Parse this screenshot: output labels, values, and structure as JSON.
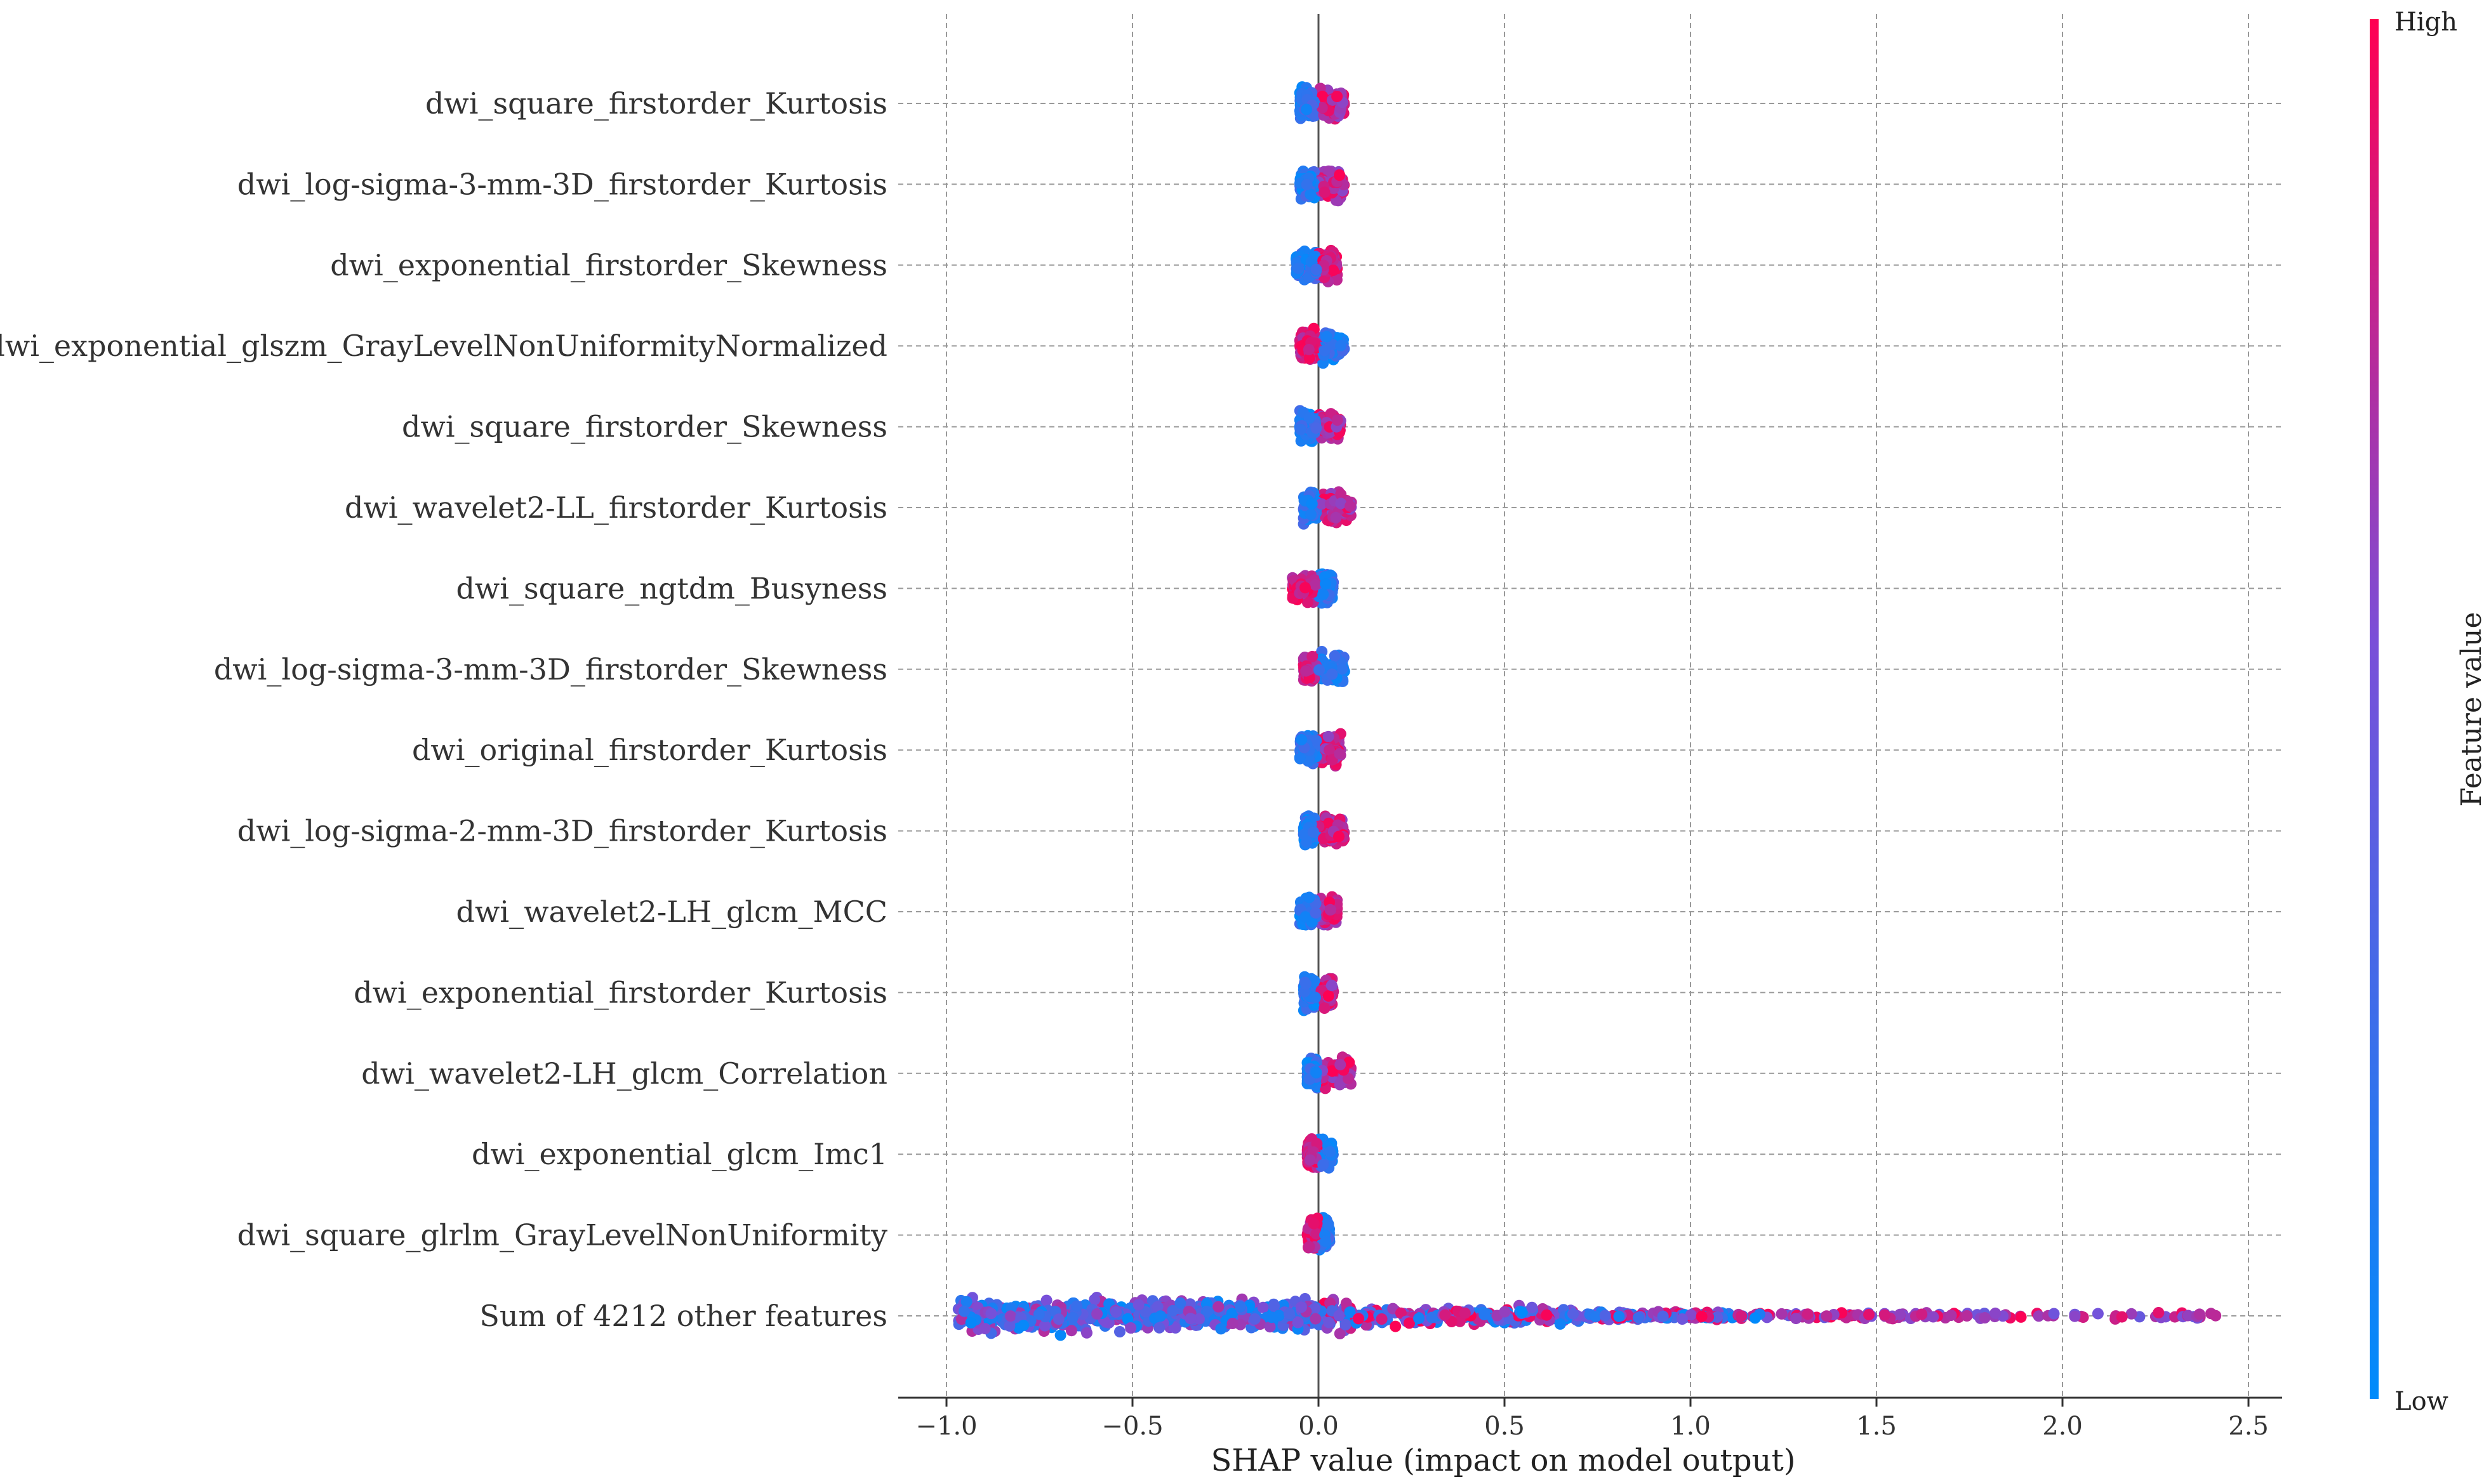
{
  "chart_data": {
    "type": "scatter",
    "subtype": "shap-beeswarm",
    "title": "",
    "xlabel": "SHAP value (impact on model output)",
    "ylabel": "",
    "xlim": [
      -1.13,
      2.6
    ],
    "xticks": [
      -1.0,
      -0.5,
      0.0,
      0.5,
      1.0,
      1.5,
      2.0,
      2.5
    ],
    "xtick_labels": [
      "−1.0",
      "−0.5",
      "0.0",
      "0.5",
      "1.0",
      "1.5",
      "2.0",
      "2.5"
    ],
    "grid": true,
    "colorbar": {
      "title": "Feature value",
      "high_label": "High",
      "low_label": "Low",
      "high_color": "#ff0052",
      "low_color": "#008bfb"
    },
    "features": [
      {
        "name": "dwi_square_firstorder_Kurtosis",
        "range": [
          -0.05,
          0.07
        ],
        "low_side": "left"
      },
      {
        "name": "dwi_log-sigma-3-mm-3D_firstorder_Kurtosis",
        "range": [
          -0.05,
          0.07
        ],
        "low_side": "left"
      },
      {
        "name": "dwi_exponential_firstorder_Skewness",
        "range": [
          -0.06,
          0.05
        ],
        "low_side": "left"
      },
      {
        "name": "dwi_exponential_glszm_GrayLevelNonUniformityNormalized",
        "range": [
          -0.05,
          0.07
        ],
        "low_side": "right"
      },
      {
        "name": "dwi_square_firstorder_Skewness",
        "range": [
          -0.05,
          0.06
        ],
        "low_side": "left"
      },
      {
        "name": "dwi_wavelet2-LL_firstorder_Kurtosis",
        "range": [
          -0.04,
          0.09
        ],
        "low_side": "left"
      },
      {
        "name": "dwi_square_ngtdm_Busyness",
        "range": [
          -0.07,
          0.04
        ],
        "low_side": "right"
      },
      {
        "name": "dwi_log-sigma-3-mm-3D_firstorder_Skewness",
        "range": [
          -0.04,
          0.07
        ],
        "low_side": "right"
      },
      {
        "name": "dwi_original_firstorder_Kurtosis",
        "range": [
          -0.05,
          0.06
        ],
        "low_side": "left"
      },
      {
        "name": "dwi_log-sigma-2-mm-3D_firstorder_Kurtosis",
        "range": [
          -0.04,
          0.07
        ],
        "low_side": "left"
      },
      {
        "name": "dwi_wavelet2-LH_glcm_MCC",
        "range": [
          -0.05,
          0.05
        ],
        "low_side": "left"
      },
      {
        "name": "dwi_exponential_firstorder_Kurtosis",
        "range": [
          -0.04,
          0.04
        ],
        "low_side": "left"
      },
      {
        "name": "dwi_wavelet2-LH_glcm_Correlation",
        "range": [
          -0.03,
          0.09
        ],
        "low_side": "left"
      },
      {
        "name": "dwi_exponential_glcm_Imc1",
        "range": [
          -0.03,
          0.04
        ],
        "low_side": "right"
      },
      {
        "name": "dwi_square_glrlm_GrayLevelNonUniformity",
        "range": [
          -0.03,
          0.03
        ],
        "low_side": "right"
      },
      {
        "name": "Sum of 4212 other features",
        "range": [
          -0.97,
          2.42
        ],
        "low_side": "mixed"
      }
    ]
  }
}
